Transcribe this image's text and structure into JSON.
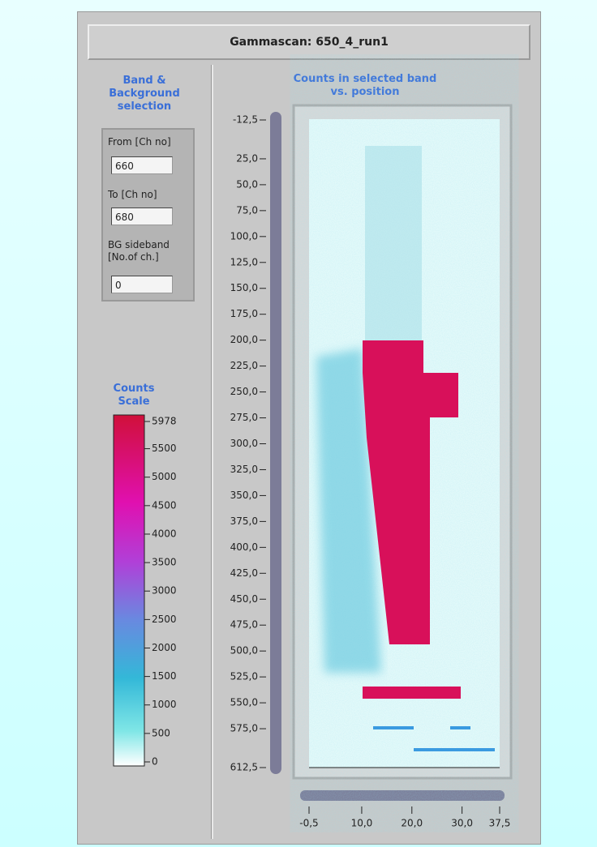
{
  "window": {
    "title": "Gammascan: 650_4_run1"
  },
  "band_selection": {
    "title": "Band & Background selection",
    "fields": [
      {
        "label": "From [Ch no]",
        "value": "660"
      },
      {
        "label": "To [Ch no]",
        "value": "680"
      },
      {
        "label": "BG sideband [No.of ch.]",
        "value": "0"
      }
    ]
  },
  "color_scale": {
    "title": "Counts Scale",
    "range": [
      0,
      5978
    ],
    "ticks": [
      5978,
      5500,
      5000,
      4500,
      4000,
      3500,
      3000,
      2500,
      2000,
      1500,
      1000,
      500,
      0
    ]
  },
  "graph": {
    "title": "Counts in selected band vs. position",
    "ylim": [
      -12.5,
      612.5
    ],
    "yticks": [
      {
        "value": -12.5,
        "label": "-12,5"
      },
      {
        "value": 25,
        "label": "25,0"
      },
      {
        "value": 50,
        "label": "50,0"
      },
      {
        "value": 75,
        "label": "75,0"
      },
      {
        "value": 100,
        "label": "100,0"
      },
      {
        "value": 125,
        "label": "125,0"
      },
      {
        "value": 150,
        "label": "150,0"
      },
      {
        "value": 175,
        "label": "175,0"
      },
      {
        "value": 200,
        "label": "200,0"
      },
      {
        "value": 225,
        "label": "225,0"
      },
      {
        "value": 250,
        "label": "250,0"
      },
      {
        "value": 275,
        "label": "275,0"
      },
      {
        "value": 300,
        "label": "300,0"
      },
      {
        "value": 325,
        "label": "325,0"
      },
      {
        "value": 350,
        "label": "350,0"
      },
      {
        "value": 375,
        "label": "375,0"
      },
      {
        "value": 400,
        "label": "400,0"
      },
      {
        "value": 425,
        "label": "425,0"
      },
      {
        "value": 450,
        "label": "450,0"
      },
      {
        "value": 475,
        "label": "475,0"
      },
      {
        "value": 500,
        "label": "500,0"
      },
      {
        "value": 525,
        "label": "525,0"
      },
      {
        "value": 550,
        "label": "550,0"
      },
      {
        "value": 575,
        "label": "575,0"
      },
      {
        "value": 612.5,
        "label": "612,5"
      }
    ],
    "xlim": [
      -0.5,
      37.5
    ],
    "xticks": [
      {
        "value": -0.5,
        "label": "-0,5"
      },
      {
        "value": 10,
        "label": "10,0"
      },
      {
        "value": 20,
        "label": "20,0"
      },
      {
        "value": 30,
        "label": "30,0"
      },
      {
        "value": 37.5,
        "label": "37,5"
      }
    ]
  }
}
